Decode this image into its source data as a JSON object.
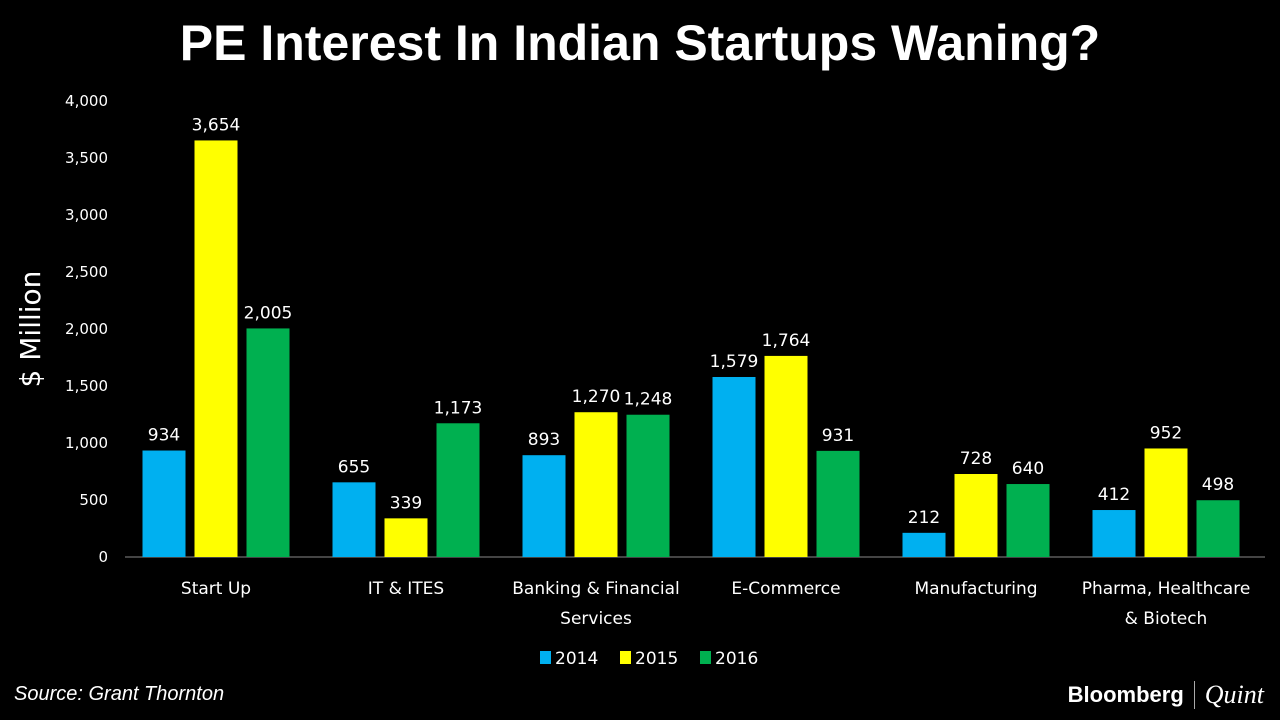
{
  "chart_data": {
    "type": "bar",
    "title": "PE Interest In Indian Startups Waning?",
    "ylabel": "$ Million",
    "xlabel": "",
    "ylim": [
      0,
      4000
    ],
    "yticks": [
      "0",
      "500",
      "1,000",
      "1,500",
      "2,000",
      "2,500",
      "3,000",
      "3,500",
      "4,000"
    ],
    "grid": false,
    "legend_position": "bottom",
    "categories": [
      [
        "Start Up"
      ],
      [
        "IT & ITES"
      ],
      [
        "Banking & Financial",
        "Services"
      ],
      [
        "E-Commerce"
      ],
      [
        "Manufacturing"
      ],
      [
        "Pharma, Healthcare",
        "& Biotech"
      ]
    ],
    "series": [
      {
        "name": "2014",
        "color": "#00b0f0",
        "values": [
          934,
          655,
          893,
          1579,
          212,
          412
        ],
        "labels": [
          "934",
          "655",
          "893",
          "1,579",
          "212",
          "412"
        ]
      },
      {
        "name": "2015",
        "color": "#ffff00",
        "values": [
          3654,
          339,
          1270,
          1764,
          728,
          952
        ],
        "labels": [
          "3,654",
          "339",
          "1,270",
          "1,764",
          "728",
          "952"
        ]
      },
      {
        "name": "2016",
        "color": "#00b050",
        "values": [
          2005,
          1173,
          1248,
          931,
          640,
          498
        ],
        "labels": [
          "2,005",
          "1,173",
          "1,248",
          "931",
          "640",
          "498"
        ]
      }
    ]
  },
  "footer": {
    "source": "Source: Grant Thornton",
    "logo_left": "Bloomberg",
    "logo_right": "Quint"
  }
}
